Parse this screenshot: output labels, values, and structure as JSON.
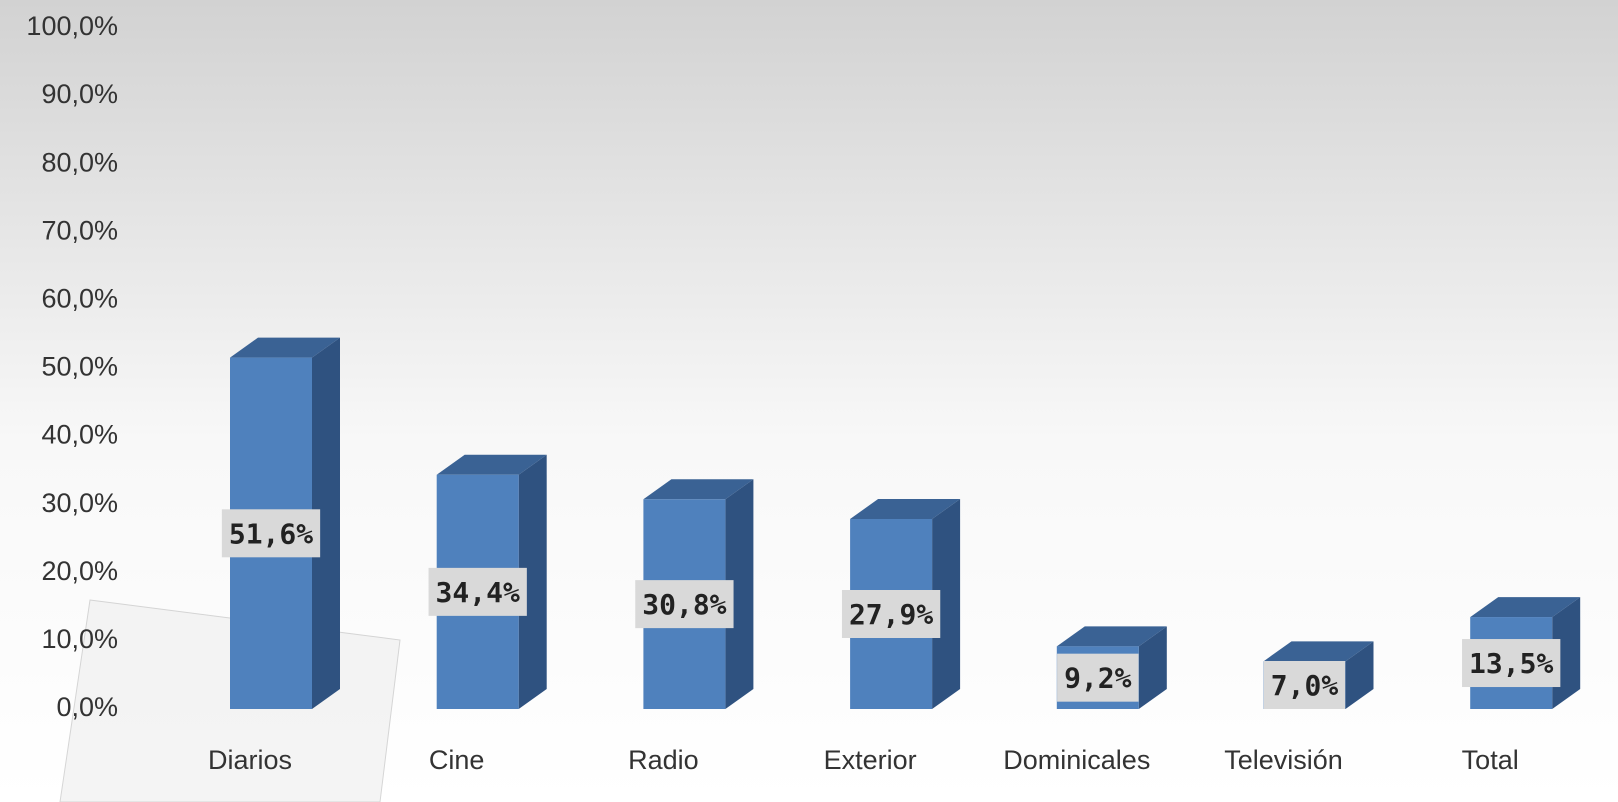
{
  "chart_data": {
    "type": "bar3d",
    "categories": [
      "Diarios",
      "Cine",
      "Radio",
      "Exterior",
      "Dominicales",
      "Televisión",
      "Total"
    ],
    "values": [
      51.6,
      34.4,
      30.8,
      27.9,
      9.2,
      7.0,
      13.5
    ],
    "value_labels": [
      "51,6%",
      "34,4%",
      "30,8%",
      "27,9%",
      "9,2%",
      "7,0%",
      "13,5%"
    ],
    "color": "#4f81bd",
    "ylim": [
      0,
      100
    ],
    "yticks": [
      {
        "value": 0,
        "label": "0,0%"
      },
      {
        "value": 10,
        "label": "10,0%"
      },
      {
        "value": 20,
        "label": "20,0%"
      },
      {
        "value": 30,
        "label": "30,0%"
      },
      {
        "value": 40,
        "label": "40,0%"
      },
      {
        "value": 50,
        "label": "50,0%"
      },
      {
        "value": 60,
        "label": "60,0%"
      },
      {
        "value": 70,
        "label": "70,0%"
      },
      {
        "value": 80,
        "label": "80,0%"
      },
      {
        "value": 90,
        "label": "90,0%"
      },
      {
        "value": 100,
        "label": "100,0%"
      }
    ],
    "grid": false
  }
}
